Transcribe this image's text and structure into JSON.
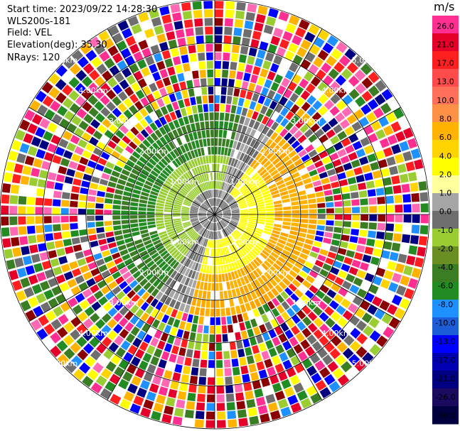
{
  "header": {
    "start_time": "Start time: 2023/09/22 14:28:30",
    "instrument": "WLS200s-181",
    "field": "Field: VEL",
    "elevation": "Elevation(deg): 35.30",
    "nrays": "NRays: 120"
  },
  "chart_data": {
    "type": "heatmap",
    "projection": "polar-ppi",
    "nrays": 120,
    "range_max_km": 5.0,
    "range_ring_labels": [
      "1.00km",
      "2.00km",
      "3.00km",
      "4.00km",
      "5.00km"
    ],
    "colorbar": {
      "unit": "m/s",
      "ticks": [
        "26.0",
        "21.0",
        "17.0",
        "13.0",
        "10.0",
        "8.0",
        "6.0",
        "4.0",
        "2.0",
        "1.0",
        "0.0",
        "-1.0",
        "-2.0",
        "-4.0",
        "-6.0",
        "-8.0",
        "-10.0",
        "-13.0",
        "-17.0",
        "-21.0",
        "-26.0",
        "-30.0"
      ],
      "colors": [
        "#ff2f92",
        "#e5002a",
        "#ff1f1f",
        "#ff4b4b",
        "#ff6f5a",
        "#ff9147",
        "#ffb300",
        "#ffd300",
        "#ffff00",
        "#ffff9b",
        "#a5a5a5",
        "#6e6e6e",
        "#9acd32",
        "#6b8e23",
        "#3a7d22",
        "#228b22",
        "#1e90ff",
        "#1c5cd6",
        "#0000ff",
        "#0000b0",
        "#000080",
        "#1a0a60",
        "#000040"
      ]
    },
    "sectors": [
      {
        "name": "positive",
        "az_center_deg": 115,
        "half_width_deg": 80,
        "color_inner": "#ffff00",
        "color_outer": "#ffa500"
      },
      {
        "name": "negative",
        "az_center_deg": 295,
        "half_width_deg": 80,
        "color_inner": "#6b8e23",
        "color_outer": "#228b22"
      }
    ]
  }
}
